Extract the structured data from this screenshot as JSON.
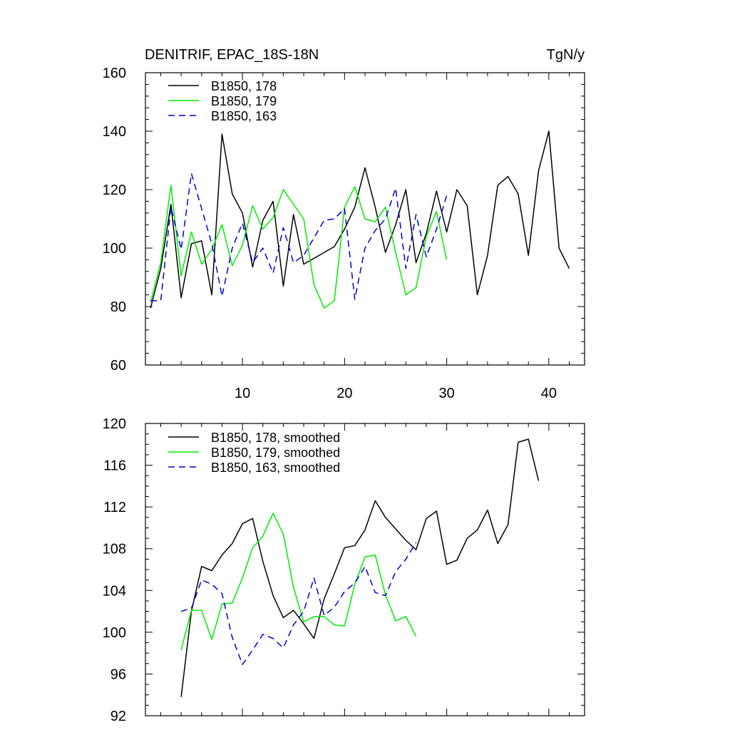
{
  "title_left": "DENITRIF, EPAC_18S-18N",
  "title_right": "TgN/y",
  "chart_data": [
    {
      "type": "line",
      "xlim": [
        0.5,
        43.5
      ],
      "ylim": [
        60,
        160
      ],
      "x_ticks": [
        10,
        20,
        30,
        40
      ],
      "x_tick_labels": [
        "10",
        "20",
        "30",
        "40"
      ],
      "y_ticks": [
        60,
        80,
        100,
        120,
        140,
        160
      ],
      "y_tick_labels": [
        "60",
        "80",
        "100",
        "120",
        "140",
        "160"
      ],
      "legend_position": "top-left",
      "series": [
        {
          "name": "B1850, 178",
          "color": "#000000",
          "dash": "solid",
          "x": [
            1,
            2,
            3,
            4,
            5,
            6,
            7,
            8,
            9,
            10,
            11,
            12,
            13,
            14,
            15,
            16,
            17,
            18,
            19,
            20,
            21,
            22,
            23,
            24,
            25,
            26,
            27,
            28,
            29,
            30,
            31,
            32,
            33,
            34,
            35,
            36,
            37,
            38,
            39,
            40,
            41,
            42
          ],
          "values": [
            79.5,
            93,
            115,
            83,
            101.5,
            102.5,
            84,
            139,
            118.5,
            112,
            93.5,
            109.5,
            116,
            87,
            111.5,
            94.5,
            96.5,
            98.5,
            100.5,
            106.5,
            114,
            127.5,
            114,
            98.5,
            108,
            120,
            95,
            105,
            119.5,
            105.5,
            120,
            114.5,
            84,
            97.5,
            121.5,
            124.5,
            118.5,
            97.5,
            126.5,
            140,
            100,
            93
          ]
        },
        {
          "name": "B1850, 179",
          "color": "#00ee00",
          "dash": "solid",
          "x": [
            1,
            2,
            3,
            4,
            5,
            6,
            7,
            8,
            9,
            10,
            11,
            12,
            13,
            14,
            15,
            16,
            17,
            18,
            19,
            20,
            21,
            22,
            23,
            24,
            25,
            26,
            27,
            28,
            29,
            30
          ],
          "values": [
            81.5,
            95,
            121.5,
            90.5,
            105.5,
            94.5,
            99.5,
            108,
            94,
            101,
            114.5,
            106.5,
            110.5,
            120,
            115,
            110,
            87.5,
            79.5,
            82,
            114,
            121,
            110,
            109,
            114,
            98.5,
            84,
            86.5,
            104,
            112.5,
            96
          ]
        },
        {
          "name": "B1850, 163",
          "color": "#0000cc",
          "dash": "dashed",
          "x": [
            1,
            2,
            3,
            4,
            5,
            6,
            7,
            8,
            9,
            10,
            11,
            12,
            13,
            14,
            15,
            16,
            17,
            18,
            19,
            20,
            21,
            22,
            23,
            24,
            25,
            26,
            27,
            28,
            29,
            30
          ],
          "values": [
            82,
            82,
            114,
            99.5,
            125.5,
            113.5,
            101.5,
            83.5,
            100,
            108.5,
            95,
            100,
            91.5,
            107,
            95,
            97.5,
            103.5,
            109.5,
            110,
            113.5,
            82.5,
            100,
            106,
            110,
            120.5,
            93,
            111.5,
            97,
            106.5,
            118
          ]
        }
      ]
    },
    {
      "type": "line",
      "xlim": [
        0.5,
        43.5
      ],
      "ylim": [
        92,
        120
      ],
      "x_ticks": [
        10,
        20,
        30,
        40
      ],
      "x_tick_labels": [],
      "y_ticks": [
        92,
        96,
        100,
        104,
        108,
        112,
        116,
        120
      ],
      "y_tick_labels": [
        "92",
        "96",
        "100",
        "104",
        "108",
        "112",
        "116",
        "120"
      ],
      "legend_position": "top-left",
      "series": [
        {
          "name": "B1850, 178, smoothed",
          "color": "#000000",
          "dash": "solid",
          "x": [
            4,
            5,
            6,
            7,
            8,
            9,
            10,
            11,
            12,
            13,
            14,
            15,
            16,
            17,
            18,
            19,
            20,
            21,
            22,
            23,
            24,
            25,
            26,
            27,
            28,
            29,
            30,
            31,
            32,
            33,
            34,
            35,
            36,
            37,
            38,
            39
          ],
          "values": [
            93.8,
            102,
            106.3,
            105.9,
            107.4,
            108.5,
            110.4,
            110.9,
            106.8,
            103.5,
            101.4,
            102.1,
            100.8,
            99.4,
            103.2,
            105.6,
            108.1,
            108.3,
            109.8,
            112.6,
            111,
            109.9,
            108.8,
            107.9,
            110.9,
            111.6,
            106.5,
            106.9,
            109,
            109.8,
            111.7,
            108.5,
            110.3,
            118.2,
            118.5,
            114.5
          ]
        },
        {
          "name": "B1850, 179, smoothed",
          "color": "#00ee00",
          "dash": "solid",
          "x": [
            4,
            5,
            6,
            7,
            8,
            9,
            10,
            11,
            12,
            13,
            14,
            15,
            16,
            17,
            18,
            19,
            20,
            21,
            22,
            23,
            24,
            25,
            26,
            27
          ],
          "values": [
            98.3,
            102.1,
            102.1,
            99.3,
            102.7,
            102.8,
            105.2,
            108.1,
            109.2,
            111.4,
            109.4,
            104.3,
            101,
            101.5,
            101.5,
            100.7,
            100.6,
            104.6,
            107.2,
            107.4,
            103.6,
            101.1,
            101.5,
            99.6
          ]
        },
        {
          "name": "B1850, 163, smoothed",
          "color": "#0000cc",
          "dash": "dashed",
          "x": [
            4,
            5,
            6,
            7,
            8,
            9,
            10,
            11,
            12,
            13,
            14,
            15,
            16,
            17,
            18,
            19,
            20,
            21,
            22,
            23,
            24,
            25,
            26,
            27
          ],
          "values": [
            102,
            102.3,
            105,
            104.6,
            103.7,
            99.5,
            96.9,
            98.3,
            99.8,
            99.4,
            98.5,
            100.7,
            102,
            105.2,
            101.6,
            102.4,
            103.9,
            104.7,
            106.3,
            103.8,
            103.5,
            105.8,
            107,
            108.6
          ]
        }
      ]
    }
  ]
}
